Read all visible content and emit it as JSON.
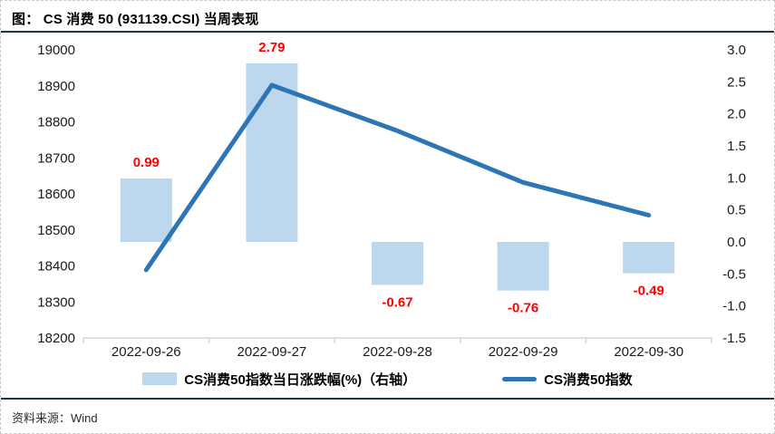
{
  "header": {
    "prefix": "图：",
    "title": "CS 消费 50 (931139.CSI) 当周表现"
  },
  "chart_data": {
    "type": "bar+line",
    "title": "CS 消费 50 (931139.CSI) 当周表现",
    "categories": [
      "2022-09-26",
      "2022-09-27",
      "2022-09-28",
      "2022-09-29",
      "2022-09-30"
    ],
    "series": [
      {
        "name": "CS消费50指数当日涨跌幅(%)（右轴）",
        "type": "bar",
        "axis": "right",
        "values": [
          0.99,
          2.79,
          -0.67,
          -0.76,
          -0.49
        ],
        "labels": [
          "0.99",
          "2.79",
          "-0.67",
          "-0.76",
          "-0.49"
        ],
        "color": "#BDD7EE",
        "label_color": "#FF0000"
      },
      {
        "name": "CS消费50指数",
        "type": "line",
        "axis": "left",
        "values": [
          18389,
          18902,
          18775,
          18632,
          18541
        ],
        "color": "#2E75B6"
      }
    ],
    "left_axis": {
      "min": 18200,
      "max": 19000,
      "step": 100,
      "ticks": [
        "19000",
        "18900",
        "18800",
        "18700",
        "18600",
        "18500",
        "18400",
        "18300",
        "18200"
      ]
    },
    "right_axis": {
      "min": -1.5,
      "max": 3.0,
      "step": 0.5,
      "ticks": [
        "3.0",
        "2.5",
        "2.0",
        "1.5",
        "1.0",
        "0.5",
        "0.0",
        "-0.5",
        "-1.0",
        "-1.5"
      ]
    },
    "grid": false,
    "legend_position": "bottom"
  },
  "footer": {
    "source_label": "资料来源：",
    "source_value": "Wind"
  }
}
